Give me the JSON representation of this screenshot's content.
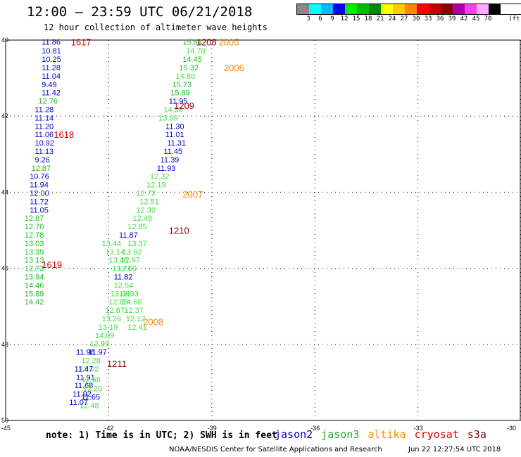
{
  "header": {
    "title": "12:00 — 23:59 UTC 06/21/2018",
    "subtitle": "12 hour collection of altimeter wave heights"
  },
  "legend": {
    "unit": "(ft)",
    "bins": [
      {
        "label": "3",
        "color": "#888888"
      },
      {
        "label": "6",
        "color": "#00ffff"
      },
      {
        "label": "9",
        "color": "#00bbff"
      },
      {
        "label": "12",
        "color": "#0000ff"
      },
      {
        "label": "15",
        "color": "#00ee00"
      },
      {
        "label": "18",
        "color": "#00bb00"
      },
      {
        "label": "21",
        "color": "#008800"
      },
      {
        "label": "24",
        "color": "#ffff00"
      },
      {
        "label": "27",
        "color": "#ffcc00"
      },
      {
        "label": "30",
        "color": "#ff8800"
      },
      {
        "label": "33",
        "color": "#ff0000"
      },
      {
        "label": "36",
        "color": "#cc0000"
      },
      {
        "label": "39",
        "color": "#880000"
      },
      {
        "label": "42",
        "color": "#aa00aa"
      },
      {
        "label": "45",
        "color": "#ee44ee"
      },
      {
        "label": "70",
        "color": "#ffaaff"
      },
      {
        "label": "",
        "color": "#000000"
      }
    ]
  },
  "axes": {
    "lat_ticks": [
      "40",
      "42",
      "44",
      "46",
      "48",
      "50"
    ],
    "lon_ticks": [
      "-45",
      "-42",
      "-39",
      "-36",
      "-33",
      "-30"
    ],
    "lat_range": [
      50,
      40
    ],
    "lon_range": [
      -45,
      -30
    ]
  },
  "colors": {
    "jason2": "#0000cc",
    "jason3": "#22bb22",
    "jason3_light": "#44dd44",
    "altika": "#ff8800",
    "cryosat": "#dd0000",
    "s3a": "#880000"
  },
  "tracks": [
    {
      "sat": "jason2",
      "lon": -43.95,
      "lat": 40.0,
      "points": [
        {
          "lat": 40.05,
          "v": "11.86"
        },
        {
          "lat": 40.28,
          "v": "10.81"
        },
        {
          "lat": 40.5,
          "v": "10.25"
        },
        {
          "lat": 40.72,
          "v": "11.28"
        },
        {
          "lat": 40.94,
          "v": "11.04"
        },
        {
          "lat": 41.16,
          "v": "9.49"
        },
        {
          "lat": 41.38,
          "v": "11.42"
        }
      ]
    },
    {
      "sat": "jason3",
      "lon": -44.05,
      "lat": 41.6,
      "points": [
        {
          "lat": 41.6,
          "v": "12.76"
        }
      ]
    },
    {
      "sat": "jason2",
      "lon": -44.15,
      "lat": 41.82,
      "points": [
        {
          "lat": 41.82,
          "v": "11.28"
        },
        {
          "lat": 42.04,
          "v": "11.14"
        },
        {
          "lat": 42.26,
          "v": "11.20"
        },
        {
          "lat": 42.48,
          "v": "11.06"
        },
        {
          "lat": 42.7,
          "v": "10.92"
        },
        {
          "lat": 42.92,
          "v": "11.13"
        },
        {
          "lat": 43.14,
          "v": "9.26"
        }
      ]
    },
    {
      "sat": "jason3",
      "lon": -44.25,
      "lat": 43.36,
      "points": [
        {
          "lat": 43.36,
          "v": "12.87"
        }
      ]
    },
    {
      "sat": "jason2",
      "lon": -44.3,
      "lat": 43.58,
      "points": [
        {
          "lat": 43.58,
          "v": "10.76"
        },
        {
          "lat": 43.8,
          "v": "11.94"
        },
        {
          "lat": 44.02,
          "v": "12.00"
        },
        {
          "lat": 44.24,
          "v": "11.72"
        },
        {
          "lat": 44.46,
          "v": "11.05"
        }
      ]
    },
    {
      "sat": "jason3",
      "lon": -44.45,
      "lat": 44.68,
      "points": [
        {
          "lat": 44.68,
          "v": "12.87"
        },
        {
          "lat": 44.9,
          "v": "12.70"
        },
        {
          "lat": 45.12,
          "v": "12.78"
        },
        {
          "lat": 45.34,
          "v": "13.03"
        },
        {
          "lat": 45.56,
          "v": "13.39"
        },
        {
          "lat": 45.78,
          "v": "13.13"
        },
        {
          "lat": 46.0,
          "v": "12.73"
        },
        {
          "lat": 46.22,
          "v": "13.94"
        },
        {
          "lat": 46.44,
          "v": "14.46"
        },
        {
          "lat": 46.66,
          "v": "15.89"
        },
        {
          "lat": 46.88,
          "v": "14.42"
        }
      ]
    }
  ],
  "track_b": [
    {
      "lon": -39.85,
      "lat": 40.05,
      "v": "15.84",
      "sat": "jason3"
    },
    {
      "lon": -39.75,
      "lat": 40.28,
      "v": "14.70",
      "sat": "jason3_light"
    },
    {
      "lon": -39.85,
      "lat": 40.5,
      "v": "14.45",
      "sat": "jason3"
    },
    {
      "lon": -39.95,
      "lat": 40.72,
      "v": "15.32",
      "sat": "jason3"
    },
    {
      "lon": -40.05,
      "lat": 40.94,
      "v": "14.80",
      "sat": "jason3_light"
    },
    {
      "lon": -40.15,
      "lat": 41.16,
      "v": "15.73",
      "sat": "jason3"
    },
    {
      "lon": -40.2,
      "lat": 41.38,
      "v": "15.89",
      "sat": "jason3"
    },
    {
      "lon": -40.25,
      "lat": 41.6,
      "v": "11.95",
      "sat": "jason2"
    },
    {
      "lon": -40.4,
      "lat": 41.82,
      "v": "14.98",
      "sat": "jason3_light"
    },
    {
      "lon": -40.55,
      "lat": 42.04,
      "v": "13.09",
      "sat": "jason3_light"
    },
    {
      "lon": -40.35,
      "lat": 42.26,
      "v": "11.30",
      "sat": "jason2"
    },
    {
      "lon": -40.35,
      "lat": 42.48,
      "v": "11.01",
      "sat": "jason2"
    },
    {
      "lon": -40.3,
      "lat": 42.7,
      "v": "11.31",
      "sat": "jason2"
    },
    {
      "lon": -40.4,
      "lat": 42.92,
      "v": "11.45",
      "sat": "jason2"
    },
    {
      "lon": -40.5,
      "lat": 43.14,
      "v": "11.39",
      "sat": "jason2"
    },
    {
      "lon": -40.6,
      "lat": 43.36,
      "v": "11.93",
      "sat": "jason2"
    },
    {
      "lon": -40.8,
      "lat": 43.58,
      "v": "12.32",
      "sat": "jason3_light"
    },
    {
      "lon": -40.9,
      "lat": 43.8,
      "v": "12.19",
      "sat": "jason3_light"
    },
    {
      "lon": -41.2,
      "lat": 44.02,
      "v": "12.72",
      "sat": "jason3_light"
    },
    {
      "lon": -41.1,
      "lat": 44.24,
      "v": "12.51",
      "sat": "jason3_light"
    },
    {
      "lon": -41.2,
      "lat": 44.46,
      "v": "12.30",
      "sat": "jason3_light"
    },
    {
      "lon": -41.3,
      "lat": 44.68,
      "v": "12.48",
      "sat": "jason3_light"
    },
    {
      "lon": -41.45,
      "lat": 44.9,
      "v": "12.85",
      "sat": "jason3_light"
    },
    {
      "lon": -41.7,
      "lat": 45.12,
      "v": "11.87",
      "sat": "jason2"
    },
    {
      "lon": -41.45,
      "lat": 45.34,
      "v": "13.37",
      "sat": "jason3_light"
    },
    {
      "lon": -41.6,
      "lat": 45.56,
      "v": "13.62",
      "sat": "jason3_light"
    },
    {
      "lon": -41.65,
      "lat": 45.78,
      "v": "12.97",
      "sat": "jason3_light"
    },
    {
      "lon": -41.75,
      "lat": 46.0,
      "v": "12.69",
      "sat": "jason3_light"
    },
    {
      "lon": -41.85,
      "lat": 46.22,
      "v": "11.82",
      "sat": "jason2"
    },
    {
      "lon": -41.85,
      "lat": 46.44,
      "v": "12.54",
      "sat": "jason3_light"
    },
    {
      "lon": -41.95,
      "lat": 46.66,
      "v": "13.44",
      "sat": "jason3_light"
    },
    {
      "lon": -42.0,
      "lat": 46.88,
      "v": "12.88",
      "sat": "jason3_light"
    },
    {
      "lon": -42.1,
      "lat": 47.1,
      "v": "12.67",
      "sat": "jason3_light"
    },
    {
      "lon": -42.2,
      "lat": 47.32,
      "v": "13.26",
      "sat": "jason3_light"
    },
    {
      "lon": -42.3,
      "lat": 47.54,
      "v": "13.19",
      "sat": "jason3_light"
    },
    {
      "lon": -42.4,
      "lat": 47.76,
      "v": "14.09",
      "sat": "jason3_light"
    },
    {
      "lon": -42.55,
      "lat": 47.98,
      "v": "12.99",
      "sat": "jason3_light"
    },
    {
      "lon": -42.6,
      "lat": 48.2,
      "v": "11.97",
      "sat": "jason2"
    },
    {
      "lon": -42.8,
      "lat": 48.42,
      "v": "12.28",
      "sat": "jason3_light"
    },
    {
      "lon": -42.85,
      "lat": 48.64,
      "v": "13.02",
      "sat": "jason3_light"
    },
    {
      "lon": -42.95,
      "lat": 48.86,
      "v": "11.91",
      "sat": "jason2"
    },
    {
      "lon": -43.0,
      "lat": 49.08,
      "v": "11.68",
      "sat": "jason2"
    },
    {
      "lon": -43.05,
      "lat": 49.3,
      "v": "11.92",
      "sat": "jason2"
    },
    {
      "lon": -43.15,
      "lat": 49.52,
      "v": "11.07",
      "sat": "jason2"
    },
    {
      "lon": -42.8,
      "lat": 49.38,
      "v": "11.65",
      "sat": "jason2"
    },
    {
      "lon": -42.85,
      "lat": 49.6,
      "v": "12.48",
      "sat": "jason3_light"
    },
    {
      "lon": -42.75,
      "lat": 49.16,
      "v": "12.20",
      "sat": "jason3_light"
    },
    {
      "lon": -42.8,
      "lat": 48.92,
      "v": "12.56",
      "sat": "jason3_light"
    },
    {
      "lon": -42.95,
      "lat": 48.2,
      "v": "11.98",
      "sat": "jason2"
    },
    {
      "lon": -43.0,
      "lat": 48.64,
      "v": "11.47",
      "sat": "jason2"
    },
    {
      "lon": -42.2,
      "lat": 45.34,
      "v": "13.44",
      "sat": "jason3_light"
    },
    {
      "lon": -42.1,
      "lat": 45.56,
      "v": "13.14",
      "sat": "jason3_light"
    },
    {
      "lon": -42.0,
      "lat": 45.78,
      "v": "13.46",
      "sat": "jason3_light"
    },
    {
      "lon": -41.9,
      "lat": 46.0,
      "v": "13.71",
      "sat": "jason3_light"
    },
    {
      "lon": -41.7,
      "lat": 46.66,
      "v": "12.93",
      "sat": "jason3_light"
    },
    {
      "lon": -41.6,
      "lat": 46.88,
      "v": "14.68",
      "sat": "jason3_light"
    },
    {
      "lon": -41.55,
      "lat": 47.1,
      "v": "12.37",
      "sat": "jason3_light"
    },
    {
      "lon": -41.5,
      "lat": 47.32,
      "v": "12.12",
      "sat": "jason3_light"
    },
    {
      "lon": -41.45,
      "lat": 47.54,
      "v": "12.41",
      "sat": "jason3_light"
    }
  ],
  "timestamps": [
    {
      "lon": -43.1,
      "lat": 40.05,
      "label": "1617",
      "sat": "cryosat"
    },
    {
      "lon": -43.6,
      "lat": 42.48,
      "label": "1618",
      "sat": "cryosat"
    },
    {
      "lon": -43.95,
      "lat": 45.9,
      "label": "1619",
      "sat": "cryosat"
    },
    {
      "lon": -39.45,
      "lat": 40.05,
      "label": "1208",
      "sat": "s3a"
    },
    {
      "lon": -38.8,
      "lat": 40.05,
      "label": "2005",
      "sat": "altika"
    },
    {
      "lon": -38.65,
      "lat": 40.72,
      "label": "2006",
      "sat": "altika"
    },
    {
      "lon": -40.1,
      "lat": 41.72,
      "label": "1209",
      "sat": "s3a"
    },
    {
      "lon": -39.85,
      "lat": 44.05,
      "label": "2007",
      "sat": "altika"
    },
    {
      "lon": -40.25,
      "lat": 45.0,
      "label": "1210",
      "sat": "s3a"
    },
    {
      "lon": -41.0,
      "lat": 47.4,
      "label": "2008",
      "sat": "altika"
    },
    {
      "lon": -42.05,
      "lat": 48.5,
      "label": "1211",
      "sat": "s3a"
    }
  ],
  "footer": {
    "note": "note: 1) Time is in UTC; 2) SWH is in feet",
    "satellites": [
      {
        "name": "jason2",
        "color": "#0000cc"
      },
      {
        "name": "jason3",
        "color": "#22aa22"
      },
      {
        "name": "altika",
        "color": "#ff8800"
      },
      {
        "name": "cryosat",
        "color": "#dd0000"
      },
      {
        "name": "s3a",
        "color": "#880000"
      }
    ],
    "credit": "NOAA/NESDIS Center for Satellite Applications and Research",
    "generated": "Jun 22 12:27:54 UTC 2018"
  }
}
